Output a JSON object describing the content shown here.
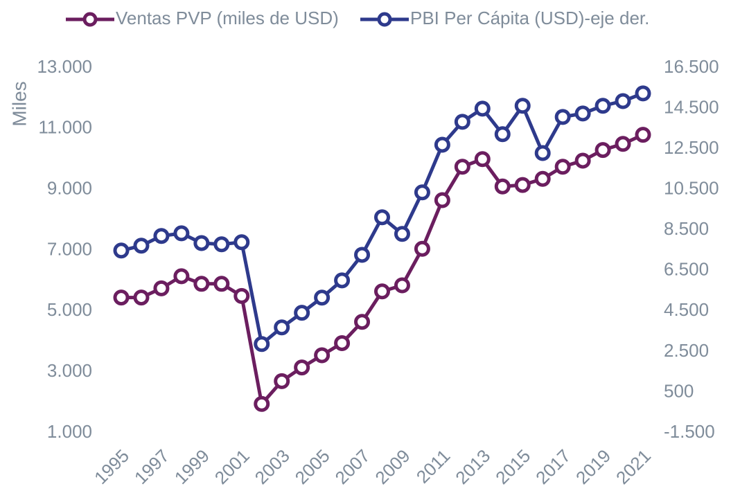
{
  "chart_data": {
    "type": "line",
    "y_label": "Miles",
    "categories": [
      "1995",
      null,
      "1997",
      null,
      "1999",
      null,
      "2001",
      null,
      "2003",
      null,
      "2005",
      null,
      "2007",
      null,
      "2009",
      null,
      "2011",
      null,
      "2013",
      null,
      "2015",
      null,
      "2017",
      null,
      "2019",
      null,
      "2021"
    ],
    "series": [
      {
        "name": "Ventas PVP (miles de USD)",
        "color": "#6b1e5f",
        "values": [
          5450,
          5450,
          5750,
          6150,
          5900,
          5900,
          5500,
          1950,
          2700,
          3150,
          3550,
          3950,
          4650,
          5650,
          5850,
          7050,
          8650,
          9750,
          10000,
          9100,
          9150,
          9350,
          9750,
          9950,
          10300,
          10500,
          10800
        ]
      },
      {
        "name": "PBI Per Cápita (USD)-eje der.",
        "color": "#2e3a8c",
        "axis": "y2",
        "values": [
          7490,
          7730,
          8210,
          8340,
          7860,
          7800,
          7900,
          2880,
          3700,
          4420,
          5170,
          6020,
          7280,
          9130,
          8310,
          10360,
          12710,
          13840,
          14490,
          13230,
          14630,
          12300,
          14080,
          14250,
          14630,
          14860,
          15240
        ]
      }
    ],
    "ylim": [
      1000,
      13000
    ],
    "yticks": [
      {
        "value": 1000,
        "label": "1.000"
      },
      {
        "value": 3000,
        "label": "3.000"
      },
      {
        "value": 5000,
        "label": "5.000"
      },
      {
        "value": 7000,
        "label": "7.000"
      },
      {
        "value": 9000,
        "label": "9.000"
      },
      {
        "value": 11000,
        "label": "11.000"
      },
      {
        "value": 13000,
        "label": "13.000"
      }
    ],
    "y2lim": [
      -1500,
      16500
    ],
    "y2ticks": [
      {
        "value": -1500,
        "label": "-1.500"
      },
      500,
      {
        "value": 2500,
        "label": "2.500"
      },
      {
        "value": 4500,
        "label": "4.500"
      },
      {
        "value": 6500,
        "label": "6.500"
      },
      {
        "value": 8500,
        "label": "8.500"
      },
      {
        "value": 10500,
        "label": "10.500"
      },
      {
        "value": 12500,
        "label": "12.500"
      },
      {
        "value": 14500,
        "label": "14.500"
      },
      {
        "value": 16500,
        "label": "16.500"
      }
    ],
    "legend": "top"
  }
}
